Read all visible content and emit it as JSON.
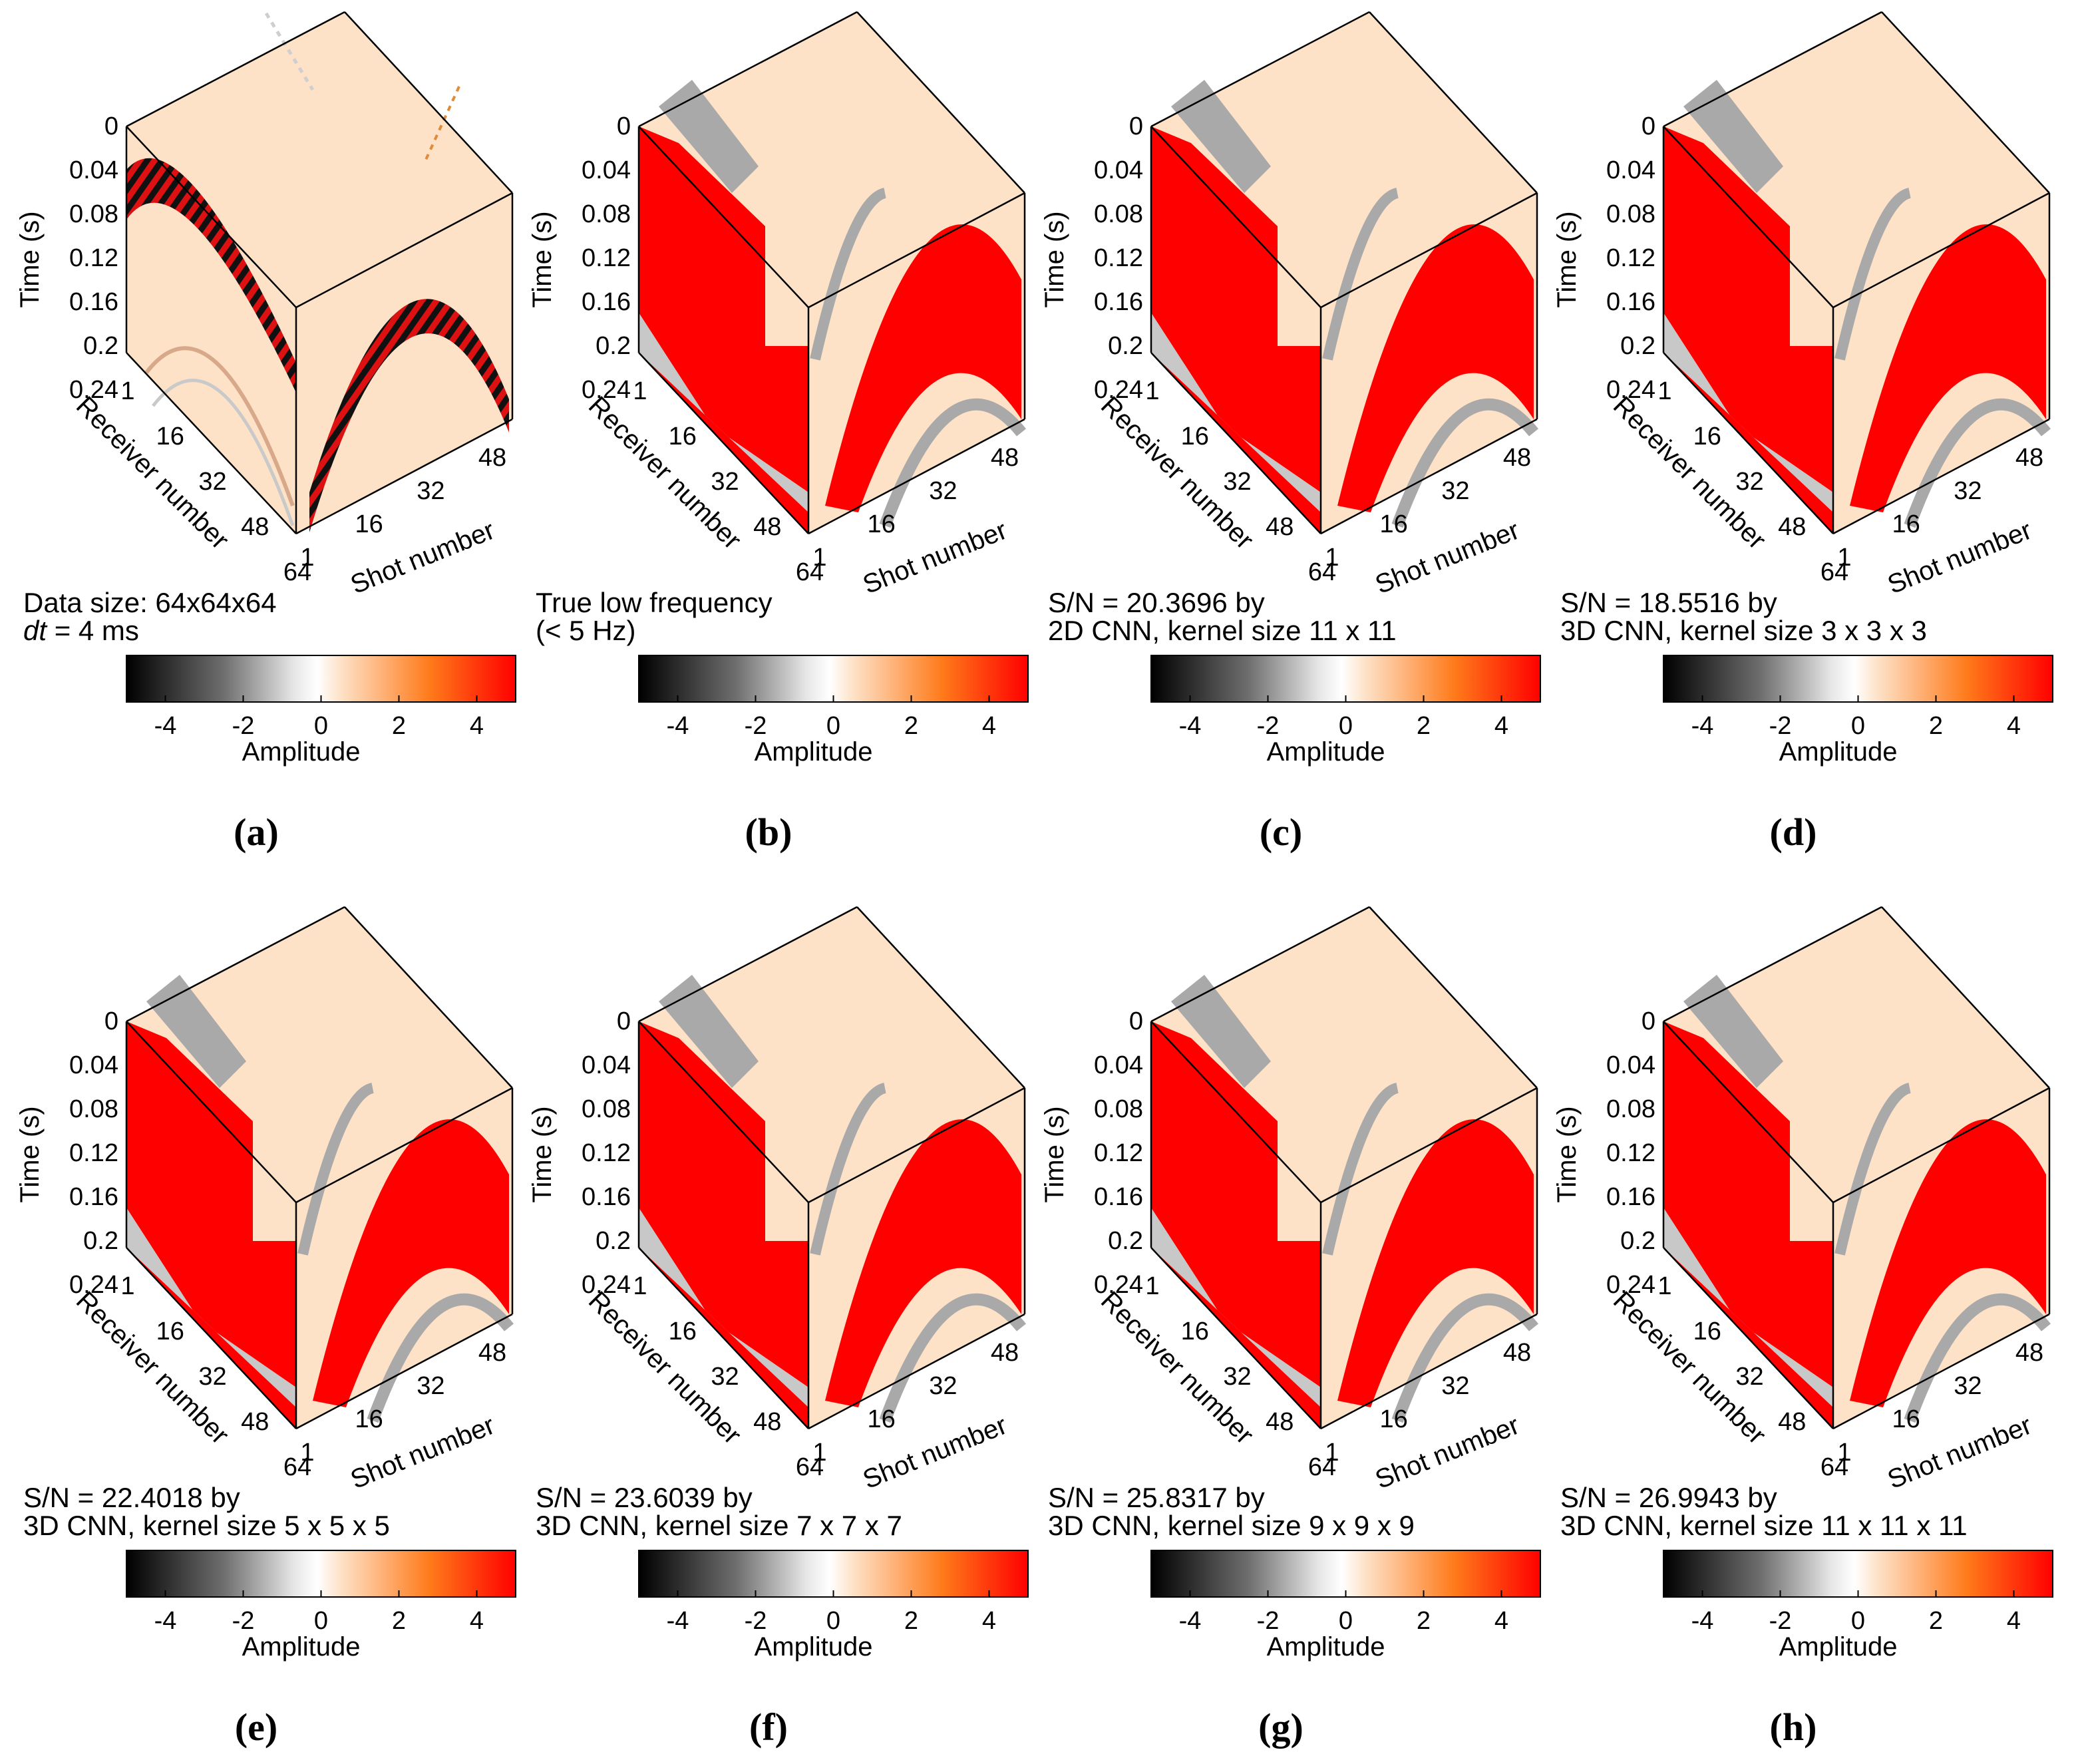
{
  "figure": {
    "axis_labels": {
      "time": "Time (s)",
      "receiver": "Receiver number",
      "shot": "Shot number"
    },
    "time_ticks": [
      "0",
      "0.04",
      "0.08",
      "0.12",
      "0.16",
      "0.2",
      "0.24"
    ],
    "receiver_ticks": [
      "1",
      "16",
      "32",
      "48",
      "64"
    ],
    "shot_ticks": [
      "1",
      "16",
      "32",
      "48"
    ],
    "colorbar": {
      "label": "Amplitude",
      "ticks": [
        "-4",
        "-2",
        "0",
        "2",
        "4"
      ],
      "range": [
        -5,
        5
      ]
    },
    "colors": {
      "black": "#000000",
      "white": "#ffffff",
      "peach": "#fde2c8",
      "orange": "#ff7a1a",
      "red": "#ff0000",
      "gray": "#a9a9a9"
    }
  },
  "panels": [
    {
      "id": "a",
      "label": "(a)",
      "caption_line1": "Data size: 64x64x64",
      "caption_line2_italic": "dt",
      "caption_line2_rest": " = 4 ms",
      "style": "raw"
    },
    {
      "id": "b",
      "label": "(b)",
      "caption_line1": "True low frequency",
      "caption_line2_italic": "",
      "caption_line2_rest": "(< 5 Hz)",
      "style": "smooth"
    },
    {
      "id": "c",
      "label": "(c)",
      "caption_line1": "S/N = 20.3696 by",
      "caption_line2_italic": "",
      "caption_line2_rest": "2D CNN, kernel size 11 x 11",
      "style": "smooth"
    },
    {
      "id": "d",
      "label": "(d)",
      "caption_line1": "S/N = 18.5516 by",
      "caption_line2_italic": "",
      "caption_line2_rest": "3D CNN, kernel size 3 x 3 x 3",
      "style": "smooth"
    },
    {
      "id": "e",
      "label": "(e)",
      "caption_line1": "S/N = 22.4018 by",
      "caption_line2_italic": "",
      "caption_line2_rest": "3D CNN, kernel size 5 x 5 x 5",
      "style": "smooth"
    },
    {
      "id": "f",
      "label": "(f)",
      "caption_line1": "S/N = 23.6039 by",
      "caption_line2_italic": "",
      "caption_line2_rest": "3D CNN, kernel size 7 x 7 x 7",
      "style": "smooth"
    },
    {
      "id": "g",
      "label": "(g)",
      "caption_line1": "S/N = 25.8317 by",
      "caption_line2_italic": "",
      "caption_line2_rest": "3D CNN, kernel size 9 x 9 x 9",
      "style": "smooth"
    },
    {
      "id": "h",
      "label": "(h)",
      "caption_line1": "S/N = 26.9943 by",
      "caption_line2_italic": "",
      "caption_line2_rest": "3D CNN, kernel size 11 x 11 x 11",
      "style": "smooth"
    }
  ],
  "chart_data": [
    {
      "type": "heatmap",
      "panel": "a",
      "title": "Data size: 64x64x64, dt = 4 ms",
      "dims": {
        "receivers": 64,
        "shots": 64,
        "time_samples": 64
      },
      "time_range_s": [
        0,
        0.256
      ],
      "colorbar_range": [
        -5,
        5
      ]
    },
    {
      "type": "heatmap",
      "panel": "b",
      "title": "True low frequency (< 5 Hz)",
      "colorbar_range": [
        -5,
        5
      ]
    },
    {
      "type": "heatmap",
      "panel": "c",
      "snr": 20.3696,
      "method": "2D CNN",
      "kernel_size": "11 x 11",
      "colorbar_range": [
        -5,
        5
      ]
    },
    {
      "type": "heatmap",
      "panel": "d",
      "snr": 18.5516,
      "method": "3D CNN",
      "kernel_size": "3 x 3 x 3",
      "colorbar_range": [
        -5,
        5
      ]
    },
    {
      "type": "heatmap",
      "panel": "e",
      "snr": 22.4018,
      "method": "3D CNN",
      "kernel_size": "5 x 5 x 5",
      "colorbar_range": [
        -5,
        5
      ]
    },
    {
      "type": "heatmap",
      "panel": "f",
      "snr": 23.6039,
      "method": "3D CNN",
      "kernel_size": "7 x 7 x 7",
      "colorbar_range": [
        -5,
        5
      ]
    },
    {
      "type": "heatmap",
      "panel": "g",
      "snr": 25.8317,
      "method": "3D CNN",
      "kernel_size": "9 x 9 x 9",
      "colorbar_range": [
        -5,
        5
      ]
    },
    {
      "type": "heatmap",
      "panel": "h",
      "snr": 26.9943,
      "method": "3D CNN",
      "kernel_size": "11 x 11 x 11",
      "colorbar_range": [
        -5,
        5
      ]
    }
  ]
}
